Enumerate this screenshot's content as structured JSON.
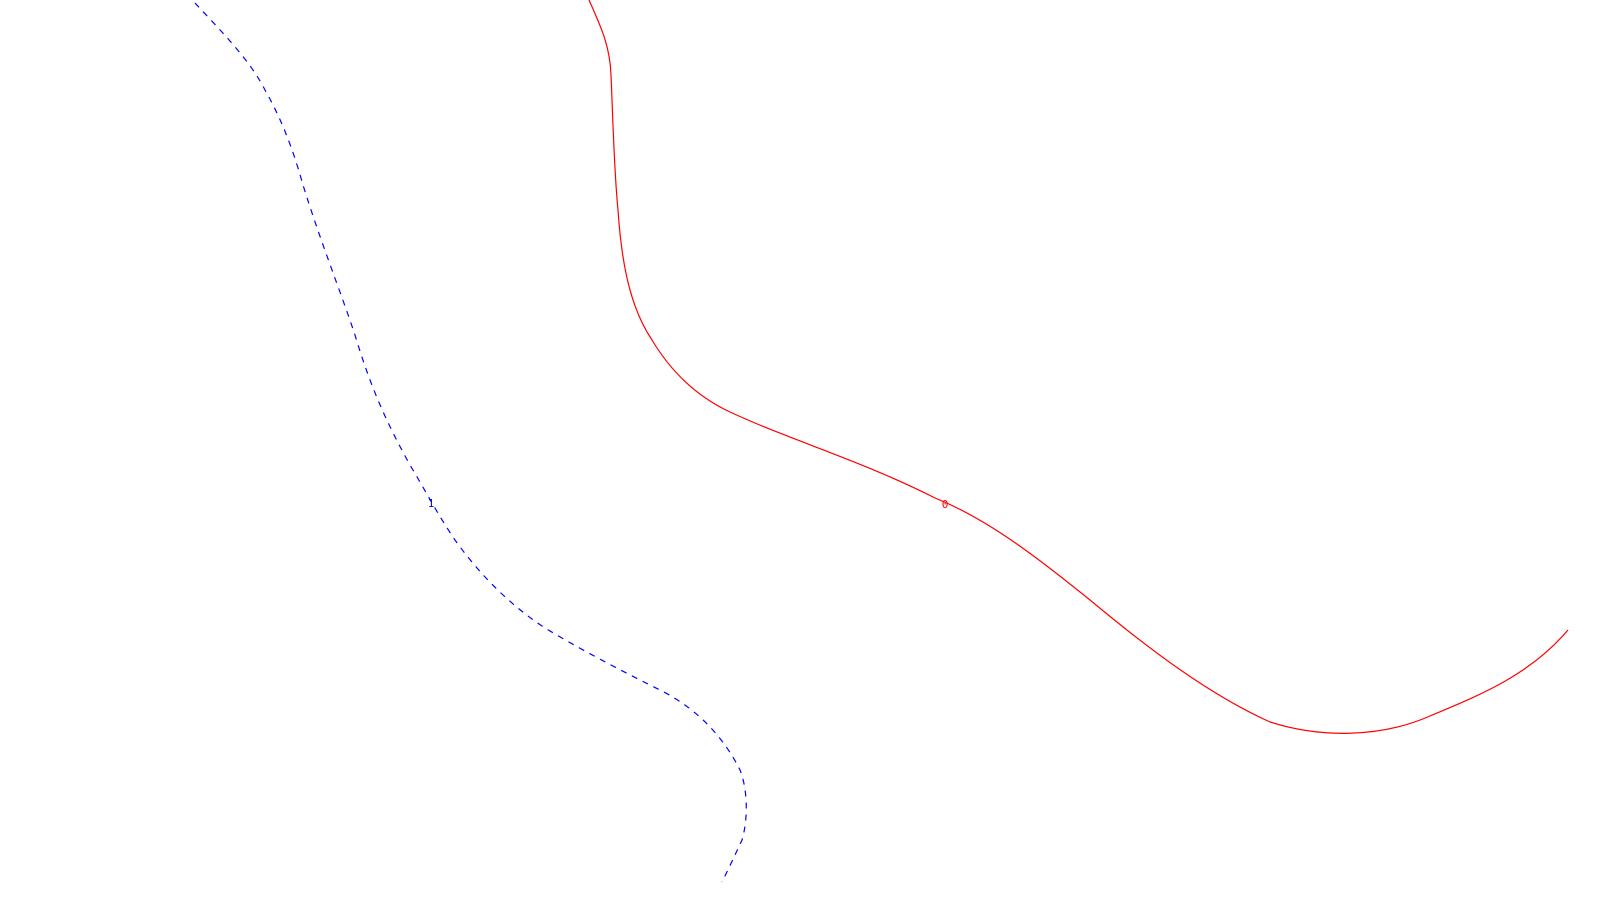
{
  "map": {
    "background_color": "#ffffff",
    "contours": [
      {
        "level_label": "0",
        "color": "#ff0000",
        "line_style": "solid"
      },
      {
        "level_label": "1",
        "color": "#0000ff",
        "line_style": "dashed"
      }
    ]
  }
}
